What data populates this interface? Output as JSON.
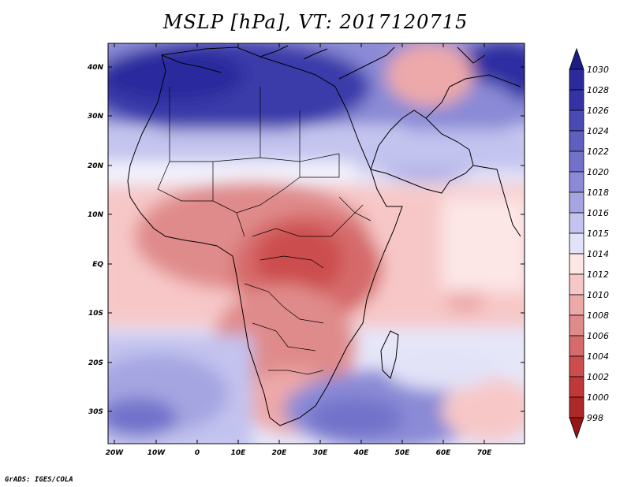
{
  "title": "MSLP [hPa], VT: 2017120715",
  "credit": "GrADS: IGES/COLA",
  "map": {
    "variable": "Mean sea level pressure",
    "units": "hPa",
    "valid_time": "2017120715",
    "lat_labels": [
      "40N",
      "30N",
      "20N",
      "10N",
      "EQ",
      "10S",
      "20S",
      "30S"
    ],
    "lon_labels": [
      "20W",
      "10W",
      "0",
      "10E",
      "20E",
      "30E",
      "40E",
      "50E",
      "60E",
      "70E"
    ]
  },
  "colorbar": {
    "levels": [
      "1030",
      "1028",
      "1026",
      "1024",
      "1022",
      "1020",
      "1018",
      "1016",
      "1015",
      "1014",
      "1012",
      "1010",
      "1008",
      "1006",
      "1004",
      "1002",
      "1000",
      "998"
    ],
    "colors": [
      "#1c1c86",
      "#2b2b9e",
      "#3333a6",
      "#4a4ab3",
      "#5f5fc0",
      "#7272cb",
      "#8a8ad6",
      "#a5a5e2",
      "#c3c3ef",
      "#e2e2f8",
      "#fce6e6",
      "#f7c7c7",
      "#eda9a9",
      "#e08b8b",
      "#d66b6b",
      "#cc4d4d",
      "#c03838",
      "#ae2828",
      "#951616"
    ]
  }
}
